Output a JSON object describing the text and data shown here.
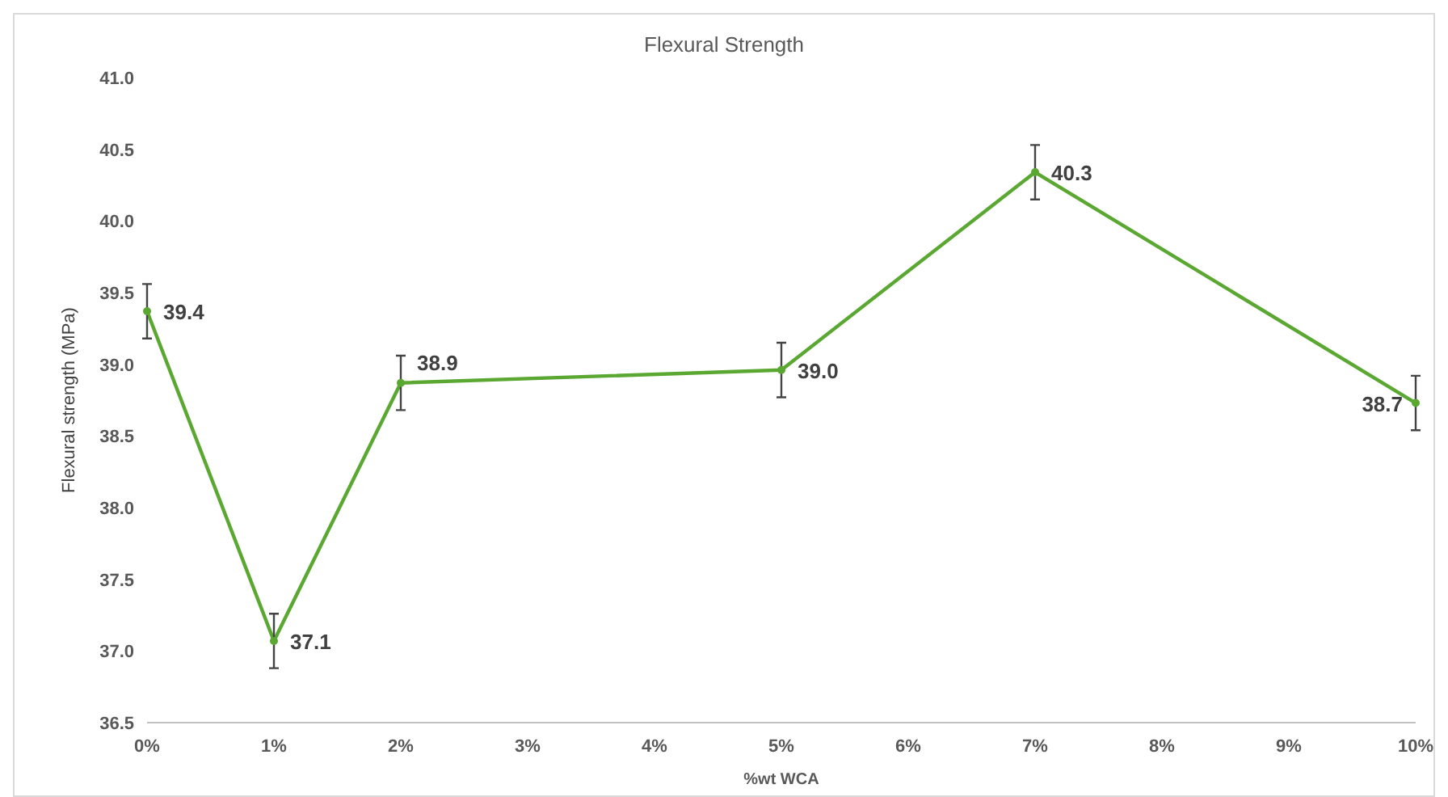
{
  "chart_data": {
    "type": "line",
    "title": "Flexural Strength",
    "xlabel": "%wt WCA",
    "ylabel": "Flexural strength (MPa)",
    "x": [
      0,
      1,
      2,
      5,
      7,
      10
    ],
    "series": [
      {
        "color": "#5aa832",
        "values": [
          39.37,
          37.07,
          38.87,
          38.96,
          40.34,
          38.73
        ],
        "errors": [
          0.19,
          0.19,
          0.19,
          0.19,
          0.19,
          0.19
        ],
        "value_labels": [
          "39.4",
          "37.1",
          "38.9",
          "39.0",
          "40.3",
          "38.7"
        ]
      }
    ],
    "xlim": [
      0,
      10
    ],
    "xticks": [
      {
        "value": 0,
        "label": "0%"
      },
      {
        "value": 1,
        "label": "1%"
      },
      {
        "value": 2,
        "label": "2%"
      },
      {
        "value": 3,
        "label": "3%"
      },
      {
        "value": 4,
        "label": "4%"
      },
      {
        "value": 5,
        "label": "5%"
      },
      {
        "value": 6,
        "label": "6%"
      },
      {
        "value": 7,
        "label": "7%"
      },
      {
        "value": 8,
        "label": "8%"
      },
      {
        "value": 9,
        "label": "9%"
      },
      {
        "value": 10,
        "label": "10%"
      }
    ],
    "ylim": [
      36.5,
      41
    ],
    "yticks": [
      {
        "value": 36.5,
        "label": "36.5"
      },
      {
        "value": 37,
        "label": "37.0"
      },
      {
        "value": 37.5,
        "label": "37.5"
      },
      {
        "value": 38,
        "label": "38.0"
      },
      {
        "value": 38.5,
        "label": "38.5"
      },
      {
        "value": 39,
        "label": "39.0"
      },
      {
        "value": 39.5,
        "label": "39.5"
      },
      {
        "value": 40,
        "label": "40.0"
      },
      {
        "value": 40.5,
        "label": "40.5"
      },
      {
        "value": 41,
        "label": "41.0"
      }
    ],
    "grid": false,
    "marker": "circle",
    "line_style": "solid"
  }
}
